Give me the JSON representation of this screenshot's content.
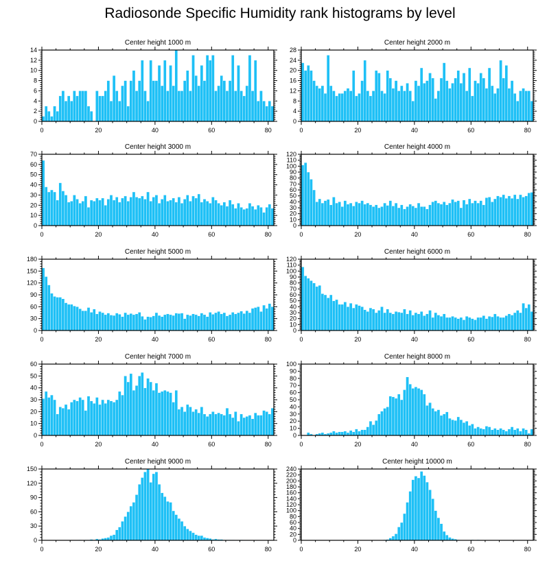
{
  "title": "Radiosonde Specific Humidity rank histograms by level",
  "bar_color": "#1ec0f6",
  "chart_data": [
    {
      "type": "bar",
      "title": "Center height 1000 m",
      "xlim": [
        0,
        82
      ],
      "xticks": [
        0,
        20,
        40,
        60,
        80
      ],
      "ylim": [
        0,
        14
      ],
      "yticks": [
        0,
        2,
        4,
        6,
        8,
        10,
        12,
        14
      ],
      "values": [
        1,
        3,
        2,
        1,
        3,
        2,
        5,
        6,
        4,
        5,
        4,
        6,
        5,
        6,
        6,
        6,
        3,
        2,
        0,
        6,
        5,
        5,
        6,
        8,
        4,
        9,
        6,
        4,
        7,
        8,
        3,
        8,
        10,
        6,
        8,
        12,
        6,
        4,
        12,
        8,
        8,
        11,
        7,
        12,
        6,
        11,
        7,
        14,
        6,
        6,
        8,
        10,
        6,
        13,
        9,
        7,
        11,
        8,
        13,
        12,
        13,
        6,
        7,
        9,
        8,
        6,
        8,
        13,
        6,
        11,
        6,
        5,
        7,
        13,
        6,
        12,
        4,
        6,
        4,
        3,
        4,
        3
      ]
    },
    {
      "type": "bar",
      "title": "Center height 2000 m",
      "xlim": [
        0,
        82
      ],
      "xticks": [
        0,
        20,
        40,
        60,
        80
      ],
      "ylim": [
        0,
        28
      ],
      "yticks": [
        0,
        4,
        8,
        12,
        16,
        20,
        24,
        28
      ],
      "values": [
        23,
        20,
        22,
        20,
        16,
        14,
        13,
        14,
        11,
        26,
        14,
        12,
        10,
        11,
        11,
        12,
        13,
        12,
        20,
        10,
        11,
        16,
        24,
        12,
        10,
        12,
        20,
        19,
        12,
        11,
        20,
        17,
        13,
        16,
        12,
        14,
        12,
        15,
        12,
        8,
        16,
        14,
        21,
        15,
        16,
        19,
        17,
        9,
        12,
        17,
        23,
        16,
        13,
        15,
        17,
        20,
        15,
        19,
        12,
        21,
        10,
        16,
        15,
        19,
        17,
        13,
        21,
        14,
        11,
        13,
        24,
        17,
        22,
        13,
        16,
        11,
        8,
        12,
        13,
        12,
        12,
        8
      ]
    },
    {
      "type": "bar",
      "title": "Center height 3000 m",
      "xlim": [
        0,
        82
      ],
      "xticks": [
        0,
        20,
        40,
        60,
        80
      ],
      "ylim": [
        0,
        70
      ],
      "yticks": [
        0,
        10,
        20,
        30,
        40,
        50,
        60,
        70
      ],
      "values": [
        64,
        38,
        33,
        35,
        33,
        25,
        42,
        34,
        30,
        23,
        24,
        30,
        26,
        22,
        24,
        29,
        18,
        25,
        24,
        27,
        25,
        27,
        20,
        26,
        30,
        25,
        28,
        23,
        27,
        29,
        24,
        28,
        33,
        28,
        27,
        29,
        26,
        33,
        24,
        28,
        30,
        22,
        26,
        30,
        24,
        25,
        27,
        23,
        28,
        22,
        26,
        30,
        24,
        29,
        27,
        31,
        23,
        26,
        24,
        22,
        28,
        25,
        22,
        20,
        23,
        19,
        25,
        21,
        17,
        22,
        18,
        16,
        17,
        22,
        19,
        16,
        20,
        18,
        13,
        18,
        21,
        17
      ]
    },
    {
      "type": "bar",
      "title": "Center height 4000 m",
      "xlim": [
        0,
        82
      ],
      "xticks": [
        0,
        20,
        40,
        60,
        80
      ],
      "ylim": [
        0,
        120
      ],
      "yticks": [
        0,
        10,
        20,
        30,
        40,
        50,
        60,
        70,
        80,
        90,
        100,
        110,
        120
      ],
      "values": [
        102,
        106,
        90,
        78,
        60,
        40,
        45,
        38,
        42,
        44,
        35,
        48,
        38,
        40,
        32,
        42,
        36,
        38,
        33,
        40,
        38,
        42,
        36,
        38,
        35,
        32,
        35,
        30,
        32,
        38,
        34,
        42,
        33,
        38,
        30,
        35,
        28,
        32,
        36,
        33,
        30,
        38,
        32,
        32,
        28,
        35,
        40,
        42,
        38,
        36,
        40,
        35,
        38,
        44,
        40,
        42,
        30,
        43,
        36,
        45,
        38,
        42,
        38,
        42,
        35,
        47,
        48,
        40,
        45,
        50,
        48,
        52,
        46,
        50,
        46,
        52,
        45,
        52,
        48,
        50,
        55,
        56
      ]
    },
    {
      "type": "bar",
      "title": "Center height 5000 m",
      "xlim": [
        0,
        82
      ],
      "xticks": [
        0,
        20,
        40,
        60,
        80
      ],
      "ylim": [
        0,
        180
      ],
      "yticks": [
        0,
        30,
        60,
        90,
        120,
        150,
        180
      ],
      "values": [
        158,
        136,
        115,
        94,
        86,
        84,
        84,
        80,
        70,
        66,
        66,
        62,
        60,
        55,
        50,
        50,
        58,
        46,
        54,
        42,
        48,
        45,
        40,
        44,
        39,
        38,
        44,
        41,
        35,
        45,
        40,
        43,
        40,
        42,
        46,
        36,
        28,
        35,
        34,
        37,
        45,
        38,
        35,
        40,
        42,
        40,
        38,
        44,
        43,
        44,
        30,
        40,
        38,
        42,
        40,
        37,
        44,
        40,
        35,
        46,
        41,
        45,
        48,
        42,
        45,
        37,
        40,
        46,
        42,
        45,
        49,
        43,
        50,
        45,
        56,
        58,
        60,
        48,
        64,
        56,
        68,
        60
      ]
    },
    {
      "type": "bar",
      "title": "Center height 6000 m",
      "xlim": [
        0,
        82
      ],
      "xticks": [
        0,
        20,
        40,
        60,
        80
      ],
      "ylim": [
        0,
        120
      ],
      "yticks": [
        0,
        10,
        20,
        30,
        40,
        50,
        60,
        70,
        80,
        90,
        100,
        110,
        120
      ],
      "values": [
        107,
        92,
        88,
        84,
        80,
        74,
        76,
        62,
        60,
        55,
        60,
        50,
        52,
        44,
        44,
        48,
        40,
        46,
        38,
        44,
        42,
        40,
        35,
        32,
        38,
        36,
        30,
        34,
        40,
        30,
        36,
        30,
        28,
        32,
        31,
        30,
        36,
        28,
        34,
        26,
        30,
        28,
        32,
        25,
        28,
        34,
        22,
        30,
        26,
        24,
        28,
        22,
        22,
        24,
        22,
        20,
        22,
        18,
        24,
        22,
        20,
        18,
        22,
        22,
        25,
        20,
        24,
        23,
        28,
        24,
        22,
        22,
        25,
        28,
        26,
        30,
        34,
        30,
        46,
        38,
        44,
        32
      ]
    },
    {
      "type": "bar",
      "title": "Center height 7000 m",
      "xlim": [
        0,
        82
      ],
      "xticks": [
        0,
        20,
        40,
        60,
        80
      ],
      "ylim": [
        0,
        60
      ],
      "yticks": [
        0,
        10,
        20,
        30,
        40,
        50,
        60
      ],
      "values": [
        31,
        37,
        32,
        34,
        30,
        18,
        24,
        23,
        26,
        22,
        28,
        30,
        29,
        32,
        30,
        21,
        33,
        29,
        27,
        32,
        26,
        30,
        27,
        30,
        29,
        28,
        30,
        37,
        34,
        50,
        45,
        52,
        38,
        42,
        50,
        53,
        40,
        48,
        45,
        38,
        44,
        36,
        37,
        38,
        37,
        36,
        28,
        38,
        22,
        24,
        20,
        26,
        24,
        20,
        22,
        19,
        24,
        18,
        16,
        18,
        20,
        18,
        19,
        18,
        17,
        23,
        18,
        15,
        20,
        12,
        18,
        15,
        16,
        17,
        14,
        19,
        17,
        17,
        21,
        20,
        18,
        23
      ]
    },
    {
      "type": "bar",
      "title": "Center height 8000 m",
      "xlim": [
        0,
        82
      ],
      "xticks": [
        0,
        20,
        40,
        60,
        80
      ],
      "ylim": [
        0,
        100
      ],
      "yticks": [
        0,
        10,
        20,
        30,
        40,
        50,
        60,
        70,
        80,
        90,
        100
      ],
      "values": [
        0,
        0,
        4,
        2,
        0,
        2,
        3,
        4,
        2,
        3,
        4,
        6,
        4,
        5,
        5,
        6,
        4,
        7,
        5,
        9,
        6,
        8,
        8,
        12,
        20,
        15,
        21,
        30,
        34,
        38,
        40,
        55,
        54,
        52,
        58,
        50,
        64,
        82,
        72,
        66,
        68,
        66,
        64,
        58,
        42,
        46,
        38,
        34,
        36,
        28,
        30,
        33,
        24,
        22,
        21,
        26,
        22,
        18,
        20,
        14,
        16,
        10,
        12,
        10,
        9,
        13,
        12,
        8,
        10,
        8,
        10,
        8,
        6,
        9,
        12,
        8,
        10,
        6,
        10,
        8,
        3,
        9
      ]
    },
    {
      "type": "bar",
      "title": "Center height 9000 m",
      "xlim": [
        0,
        82
      ],
      "xticks": [
        0,
        20,
        40,
        60,
        80
      ],
      "ylim": [
        0,
        150
      ],
      "yticks": [
        0,
        30,
        60,
        90,
        120,
        150
      ],
      "values": [
        0,
        0,
        0,
        0,
        0,
        0,
        0,
        0,
        0,
        0,
        0,
        0,
        0,
        1,
        0,
        1,
        1,
        2,
        1,
        3,
        2,
        4,
        5,
        6,
        10,
        12,
        22,
        28,
        40,
        50,
        60,
        72,
        80,
        96,
        118,
        132,
        144,
        150,
        122,
        140,
        144,
        118,
        100,
        92,
        82,
        80,
        62,
        54,
        46,
        40,
        30,
        24,
        20,
        16,
        12,
        10,
        10,
        6,
        5,
        4,
        2,
        3,
        2,
        2,
        1,
        1,
        1,
        1,
        0,
        0,
        1,
        0,
        0,
        0,
        0,
        0,
        0,
        0,
        0,
        0,
        0,
        0
      ]
    },
    {
      "type": "bar",
      "title": "Center height 10000 m",
      "xlim": [
        0,
        82
      ],
      "xticks": [
        0,
        20,
        40,
        60,
        80
      ],
      "ylim": [
        0,
        240
      ],
      "yticks": [
        0,
        20,
        40,
        60,
        80,
        100,
        120,
        140,
        160,
        180,
        200,
        220,
        240
      ],
      "values": [
        0,
        0,
        0,
        0,
        0,
        0,
        0,
        0,
        0,
        0,
        0,
        0,
        0,
        0,
        0,
        0,
        0,
        0,
        0,
        0,
        0,
        0,
        0,
        0,
        0,
        0,
        0,
        0,
        0,
        2,
        3,
        8,
        14,
        22,
        45,
        60,
        90,
        128,
        165,
        204,
        216,
        210,
        232,
        218,
        196,
        170,
        140,
        100,
        76,
        56,
        30,
        18,
        10,
        6,
        4,
        2,
        1,
        1,
        0,
        0,
        2,
        0,
        2,
        1,
        0,
        0,
        0,
        0,
        0,
        0,
        0,
        0,
        0,
        0,
        0,
        0,
        0,
        0,
        0,
        0,
        0,
        0
      ]
    }
  ]
}
